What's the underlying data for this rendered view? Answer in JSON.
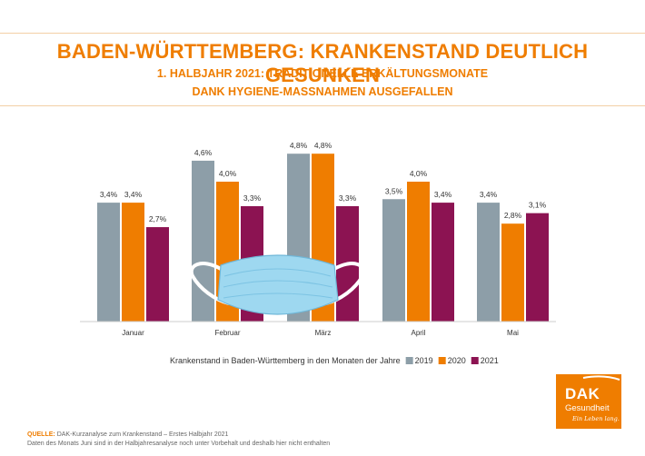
{
  "header": {
    "title": "BADEN-WÜRTTEMBERG: KRANKENSTAND DEUTLICH GESUNKEN",
    "subtitle_line1": "1. HALBJAHR 2021: TRADITIONELLE ERKÄLTUNGSMONATE",
    "subtitle_line2": "DANK HYGIENE-MASSNAHMEN AUSGEFALLEN"
  },
  "chart_data": {
    "type": "bar",
    "categories": [
      "Januar",
      "Februar",
      "März",
      "April",
      "Mai"
    ],
    "series": [
      {
        "name": "2019",
        "color": "#8d9ea8",
        "values": [
          3.4,
          4.6,
          4.8,
          3.5,
          3.4
        ],
        "labels": [
          "3,4%",
          "4,6%",
          "4,8%",
          "3,5%",
          "3,4%"
        ]
      },
      {
        "name": "2020",
        "color": "#ef7d00",
        "values": [
          3.4,
          4.0,
          4.8,
          4.0,
          2.8
        ],
        "labels": [
          "3,4%",
          "4,0%",
          "4,8%",
          "4,0%",
          "2,8%"
        ]
      },
      {
        "name": "2021",
        "color": "#8c1352",
        "values": [
          2.7,
          3.3,
          3.3,
          3.4,
          3.1
        ],
        "labels": [
          "2,7%",
          "3,3%",
          "3,3%",
          "3,4%",
          "3,1%"
        ]
      }
    ],
    "legend_label": "Krankenstand in Baden-Württemberg in den Monaten der Jahre",
    "legend_placement": "bottom-center",
    "grid": false,
    "ylim": [
      0,
      5
    ]
  },
  "footer": {
    "source_label": "QUELLE:",
    "source_text": "DAK-Kurzanalyse zum Krankenstand – Erstes Halbjahr 2021",
    "note": "Daten des Monats Juni sind in der Halbjahresanalyse noch unter Vorbehalt und deshalb hier nicht enthalten"
  },
  "logo": {
    "name": "DAK",
    "sub": "Gesundheit",
    "slogan": "Ein Leben lang."
  },
  "icons": {
    "mask": "face-mask-icon"
  }
}
